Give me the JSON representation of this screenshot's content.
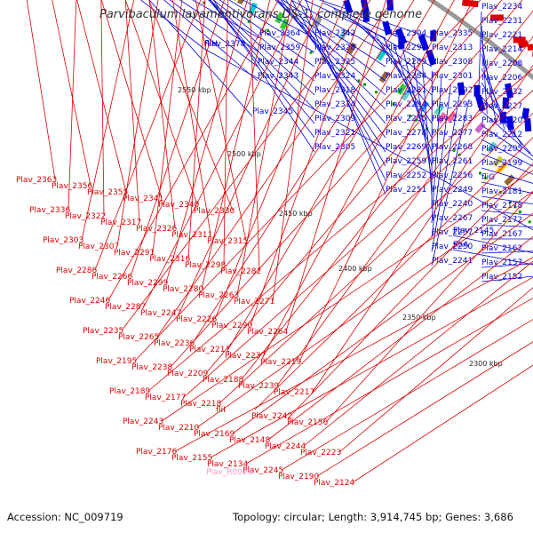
{
  "title": "Parvibaculum lavamentivorans DS-1, complete genome",
  "footer": {
    "accession": "Accession: NC_009719",
    "topology": "Topology: circular; Length: 3,914,745 bp; Genes: 3,686"
  },
  "colors": {
    "forward": "#0000dd",
    "reverse": "#dd0000",
    "rna": "#ff99cc",
    "backbone": "#999999"
  },
  "scale_ticks": [
    "2550 kbp",
    "2500 kbp",
    "2450 kbp",
    "2400 kbp",
    "2350 kbp",
    "2300 kbp"
  ],
  "blue_labels": [
    "Plav_2378",
    "Plav_2364",
    "Plav_2359",
    "Plav_2344",
    "Plav_2343",
    "Plav_2345",
    "Plav_2342",
    "Plav_2328",
    "Plav_2325",
    "Plav_2324",
    "Plav_2318",
    "Plav_2314",
    "Plav_2309",
    "Plav_2321",
    "Plav_2305",
    "Plav_2304",
    "Plav_2296",
    "Plav_2289",
    "Plav_2284",
    "Plav_2281",
    "Plav_2294",
    "Plav_2285",
    "Plav_2278",
    "Plav_2269",
    "Plav_2259",
    "Plav_2252",
    "Plav_2251",
    "Plav_2335",
    "Plav_2313",
    "Plav_2308",
    "Plav_2301",
    "Plav_2292",
    "Plav_2293",
    "Plav_2283",
    "Plav_2277",
    "Plav_2268",
    "Plav_2261",
    "Plav_2256",
    "Plav_2249",
    "Plav_2240",
    "Plav_2267",
    "Plav_2257",
    "Plav_2250",
    "Plav_2241",
    "Plav_2234",
    "Plav_2231",
    "Plav_2221",
    "Plav_2214",
    "Plav_2208",
    "Plav_2206",
    "Plav_2232",
    "Plav_2227",
    "Plav_2220",
    "Plav_2212",
    "Plav_2205",
    "Plav_2199",
    "fliG",
    "Plav_2181",
    "Plav_2178",
    "Plav_2172",
    "Plav_2167",
    "Plav_2162",
    "Plav_2157",
    "Plav_2152",
    "Plav_2145",
    "flhA",
    "fliH"
  ],
  "red_labels": [
    "Plav_2363",
    "Plav_2356",
    "Plav_2355",
    "Plav_2341",
    "Plav_2340",
    "Plav_2330",
    "Plav_2336",
    "Plav_2322",
    "Plav_2317",
    "Plav_2326",
    "Plav_2311",
    "Plav_2315",
    "Plav_2303",
    "Plav_2307",
    "Plav_2291",
    "Plav_2316",
    "Plav_2298",
    "Plav_2282",
    "Plav_2286",
    "Plav_2266",
    "Plav_2299",
    "Plav_2280",
    "Plav_2263",
    "Plav_2271",
    "Plav_2246",
    "Plav_2287",
    "Plav_2247",
    "Plav_2226",
    "Plav_2290",
    "Plav_2264",
    "Plav_2235",
    "Plav_2265",
    "Plav_2236",
    "Plav_2211",
    "Plav_2237",
    "Plav_2219",
    "Plav_2195",
    "Plav_2238",
    "Plav_2209",
    "Plav_2188",
    "Plav_2239",
    "Plav_2217",
    "Plav_2189",
    "Plav_2177",
    "Plav_2218",
    "fliI",
    "Plav_2242",
    "Plav_2156",
    "Plav_2243",
    "Plav_2210",
    "Plav_2169",
    "Plav_2148",
    "Plav_2244",
    "Plav_2223",
    "Plav_2176",
    "Plav_2155",
    "Plav_2134",
    "Plav_2245",
    "Plav_2190",
    "Plav_2124"
  ],
  "rna_labels": [
    "Plav_R0028"
  ]
}
